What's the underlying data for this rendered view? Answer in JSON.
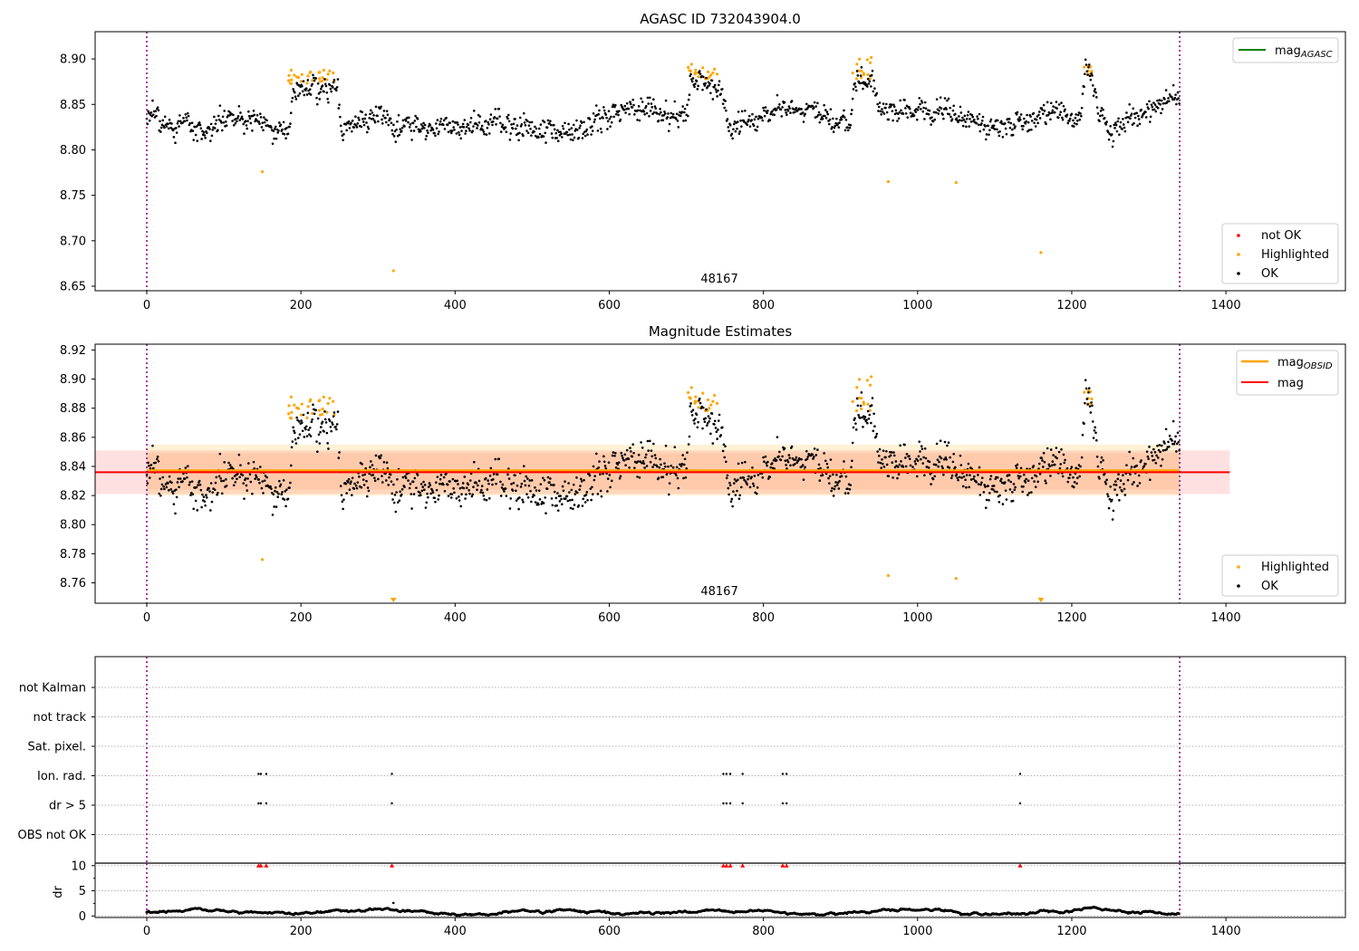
{
  "chart_data": [
    {
      "type": "scatter",
      "title": "AGASC ID 732043904.0",
      "xlim": [
        -67,
        1555
      ],
      "ylim": [
        8.645,
        8.93
      ],
      "xticks": [
        0,
        200,
        400,
        600,
        800,
        1000,
        1200,
        1400
      ],
      "yticks": [
        8.65,
        8.7,
        8.75,
        8.8,
        8.85,
        8.9
      ],
      "ytick_decimals": 2,
      "vlines": [
        0,
        1340
      ],
      "annotation": {
        "text": "48167",
        "x": 670
      },
      "legend_lines": [
        {
          "label": "mag",
          "sub": "AGASC",
          "color": "#008000"
        }
      ],
      "legend_points": [
        {
          "label": "not OK",
          "color": "#ff0000"
        },
        {
          "label": "Highlighted",
          "color": "#ffa500"
        },
        {
          "label": "OK",
          "color": "#000000"
        }
      ],
      "highlighted_points": [
        {
          "x": 150,
          "y": 8.776
        },
        {
          "x": 320,
          "y": 8.667
        },
        {
          "x": 962,
          "y": 8.765
        },
        {
          "x": 1050,
          "y": 8.764
        },
        {
          "x": 1160,
          "y": 8.687
        }
      ],
      "ok_trend": [
        [
          0,
          8.838
        ],
        [
          40,
          8.822
        ],
        [
          80,
          8.832
        ],
        [
          130,
          8.832
        ],
        [
          170,
          8.82
        ],
        [
          185,
          8.815
        ],
        [
          190,
          8.872
        ],
        [
          215,
          8.868
        ],
        [
          248,
          8.866
        ],
        [
          252,
          8.822
        ],
        [
          290,
          8.836
        ],
        [
          330,
          8.828
        ],
        [
          380,
          8.82
        ],
        [
          450,
          8.828
        ],
        [
          500,
          8.822
        ],
        [
          540,
          8.818
        ],
        [
          575,
          8.828
        ],
        [
          600,
          8.835
        ],
        [
          625,
          8.845
        ],
        [
          650,
          8.848
        ],
        [
          680,
          8.835
        ],
        [
          700,
          8.838
        ],
        [
          705,
          8.876
        ],
        [
          735,
          8.87
        ],
        [
          745,
          8.862
        ],
        [
          755,
          8.822
        ],
        [
          780,
          8.83
        ],
        [
          820,
          8.848
        ],
        [
          870,
          8.845
        ],
        [
          900,
          8.832
        ],
        [
          912,
          8.828
        ],
        [
          918,
          8.874
        ],
        [
          940,
          8.882
        ],
        [
          952,
          8.84
        ],
        [
          1000,
          8.843
        ],
        [
          1040,
          8.843
        ],
        [
          1080,
          8.826
        ],
        [
          1100,
          8.82
        ],
        [
          1140,
          8.835
        ],
        [
          1180,
          8.843
        ],
        [
          1212,
          8.836
        ],
        [
          1218,
          8.888
        ],
        [
          1228,
          8.874
        ],
        [
          1235,
          8.834
        ],
        [
          1250,
          8.825
        ],
        [
          1280,
          8.835
        ],
        [
          1300,
          8.845
        ],
        [
          1320,
          8.852
        ],
        [
          1340,
          8.856
        ]
      ],
      "highlight_clusters": [
        {
          "x": [
            180,
            250
          ],
          "y": [
            8.872,
            8.888
          ]
        },
        {
          "x": [
            700,
            742
          ],
          "y": [
            8.876,
            8.895
          ]
        },
        {
          "x": [
            915,
            942
          ],
          "y": [
            8.876,
            8.903
          ]
        },
        {
          "x": [
            1215,
            1226
          ],
          "y": [
            8.88,
            8.895
          ]
        }
      ]
    },
    {
      "type": "scatter",
      "title": "Magnitude Estimates",
      "xlim": [
        -67,
        1555
      ],
      "ylim": [
        8.746,
        8.924
      ],
      "xticks": [
        0,
        200,
        400,
        600,
        800,
        1000,
        1200,
        1400
      ],
      "yticks": [
        8.76,
        8.78,
        8.8,
        8.82,
        8.84,
        8.86,
        8.88,
        8.9,
        8.92
      ],
      "ytick_decimals": 2,
      "vlines": [
        0,
        1340
      ],
      "annotation": {
        "text": "48167",
        "x": 670
      },
      "mag": 8.836,
      "mag_band": [
        8.821,
        8.851
      ],
      "mag_obsid": 8.837,
      "mag_obsid_band": [
        8.82,
        8.855
      ],
      "mag_obsid_inner_band": [
        8.824,
        8.849
      ],
      "legend_lines": [
        {
          "label": "mag",
          "sub": "OBSID",
          "color": "#ffa500"
        },
        {
          "label": "mag",
          "sub": "",
          "color": "#ff0000"
        }
      ],
      "legend_points": [
        {
          "label": "Highlighted",
          "color": "#ffa500"
        },
        {
          "label": "OK",
          "color": "#000000"
        }
      ],
      "highlighted_points": [
        {
          "x": 150,
          "y": 8.776
        },
        {
          "x": 962,
          "y": 8.765
        },
        {
          "x": 1050,
          "y": 8.763
        }
      ],
      "below_range_markers": [
        320,
        1160
      ]
    },
    {
      "type": "scatter",
      "title": "",
      "xlim": [
        -67,
        1555
      ],
      "xticks": [
        0,
        200,
        400,
        600,
        800,
        1000,
        1200,
        1400
      ],
      "vlines": [
        0,
        1340
      ],
      "flag_rows": [
        "not Kalman",
        "not track",
        "Sat. pixel.",
        "Ion. rad.",
        "dr > 5",
        "OBS not OK"
      ],
      "flags": {
        "Ion. rad.": [
          145,
          148,
          155,
          318,
          748,
          752,
          757,
          773,
          825,
          830,
          1133
        ],
        "dr > 5": [
          145,
          148,
          155,
          318,
          748,
          752,
          757,
          773,
          825,
          830,
          1133
        ]
      },
      "dr": {
        "ylabel": "dr",
        "ylim": [
          -0.3,
          10.5
        ],
        "yticks": [
          0,
          5,
          10
        ],
        "clip_value": 10,
        "clipped_x": [
          145,
          148,
          155,
          318,
          748,
          752,
          757,
          773,
          825,
          830,
          1133
        ],
        "spike": {
          "x": 320,
          "y": 2.6
        }
      }
    }
  ]
}
